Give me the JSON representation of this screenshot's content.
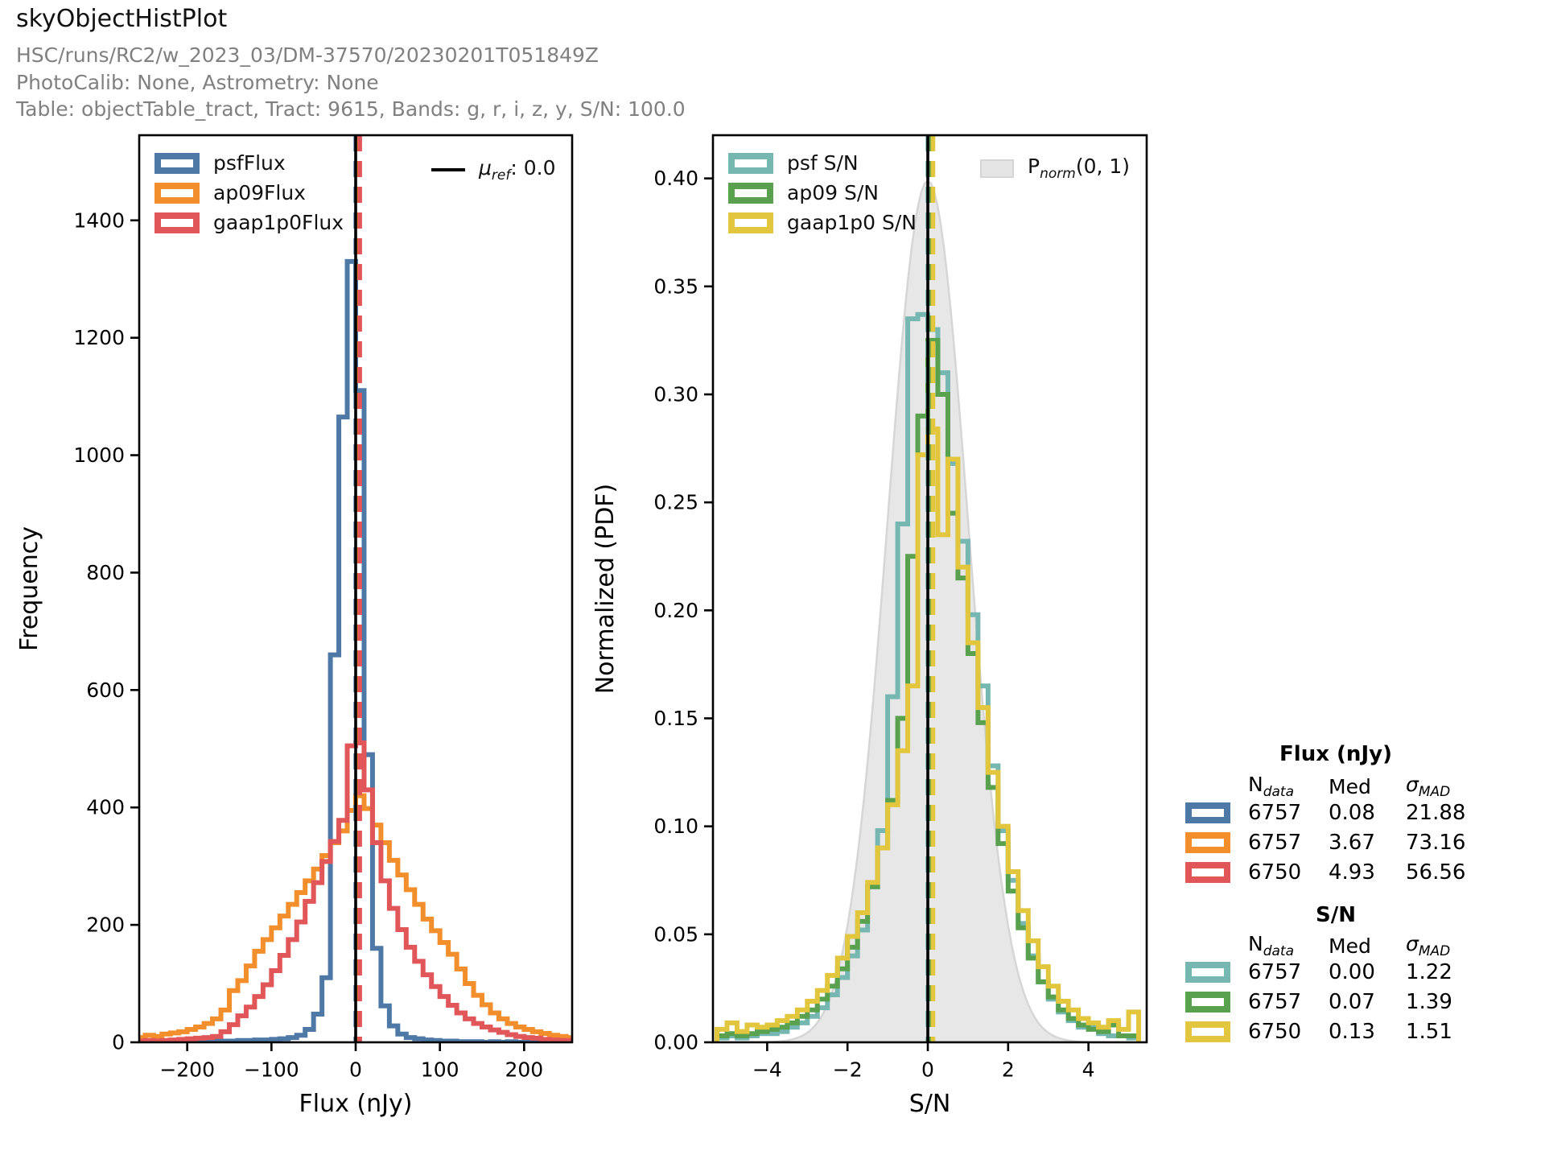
{
  "header": {
    "title": "skyObjectHistPlot",
    "subtitle1": "HSC/runs/RC2/w_2023_03/DM-37570/20230201T051849Z",
    "subtitle2": "PhotoCalib: None, Astrometry: None",
    "subtitle3": "Table: objectTable_tract, Tract: 9615, Bands: g, r, i, z, y, S/N: 100.0"
  },
  "colors": {
    "psf_flux": "#4E79A7",
    "ap09_flux": "#F28E2B",
    "gaap_flux": "#E15759",
    "psf_sn": "#76B7B2",
    "ap09_sn": "#59A14F",
    "gaap_sn": "#E2C63E",
    "norm_fill": "#E7E7E7",
    "norm_edge": "#D6D6D6",
    "ref_line": "#000000",
    "subtitle_text": "#808080"
  },
  "chart_data": [
    {
      "id": "flux-histogram",
      "type": "histogram-step",
      "xlabel": "Flux (nJy)",
      "ylabel": "Frequency",
      "xlim": [
        -257,
        257
      ],
      "ylim": [
        0,
        1545
      ],
      "xticks": {
        "values": [
          -200,
          -100,
          0,
          100,
          200
        ],
        "labels": [
          "−200",
          "−100",
          "0",
          "100",
          "200"
        ]
      },
      "yticks": {
        "values": [
          0,
          200,
          400,
          600,
          800,
          1000,
          1200,
          1400
        ],
        "labels": [
          "0",
          "200",
          "400",
          "600",
          "800",
          "1000",
          "1200",
          "1400"
        ]
      },
      "bin_start": -260,
      "bin_width": 10,
      "ref_line": {
        "value": 0.0,
        "label_base": "μ",
        "label_sub": "ref",
        "label_suffix": ": 0.0"
      },
      "series": [
        {
          "name": "psfFlux",
          "color": "#4E79A7",
          "median": 0.08,
          "values": [
            1,
            0,
            1,
            1,
            0,
            1,
            1,
            2,
            1,
            2,
            2,
            2,
            3,
            3,
            4,
            4,
            5,
            6,
            8,
            12,
            22,
            48,
            110,
            660,
            1065,
            1330,
            1110,
            490,
            160,
            62,
            28,
            14,
            8,
            6,
            4,
            3,
            2,
            2,
            1,
            1,
            1,
            0,
            1,
            0,
            1,
            0,
            0,
            0,
            0,
            0,
            0,
            0
          ]
        },
        {
          "name": "ap09Flux",
          "color": "#F28E2B",
          "median": 3.67,
          "values": [
            8,
            12,
            10,
            14,
            16,
            18,
            22,
            26,
            32,
            40,
            55,
            88,
            105,
            130,
            155,
            175,
            195,
            215,
            235,
            255,
            275,
            295,
            318,
            340,
            360,
            395,
            420,
            398,
            370,
            340,
            310,
            285,
            260,
            235,
            210,
            190,
            170,
            150,
            125,
            100,
            80,
            64,
            50,
            40,
            32,
            26,
            22,
            18,
            15,
            12,
            10,
            8
          ]
        },
        {
          "name": "gaap1p0Flux",
          "color": "#E15759",
          "median": 4.93,
          "values": [
            2,
            3,
            2,
            3,
            4,
            5,
            6,
            7,
            8,
            10,
            18,
            30,
            45,
            60,
            78,
            98,
            122,
            148,
            175,
            205,
            240,
            272,
            308,
            342,
            378,
            505,
            510,
            430,
            340,
            275,
            228,
            192,
            162,
            138,
            115,
            95,
            78,
            63,
            50,
            40,
            32,
            26,
            21,
            17,
            13,
            10,
            8,
            7,
            5,
            4,
            3,
            3
          ]
        }
      ]
    },
    {
      "id": "sn-histogram",
      "type": "histogram-step",
      "xlabel": "S/N",
      "ylabel": "Normalized (PDF)",
      "xlim": [
        -5.35,
        5.45
      ],
      "ylim": [
        0,
        0.42
      ],
      "xticks": {
        "values": [
          -4,
          -2,
          0,
          2,
          4
        ],
        "labels": [
          "−4",
          "−2",
          "0",
          "2",
          "4"
        ]
      },
      "yticks": {
        "values": [
          0,
          0.05,
          0.1,
          0.15,
          0.2,
          0.25,
          0.3,
          0.35,
          0.4
        ],
        "labels": [
          "0.00",
          "0.05",
          "0.10",
          "0.15",
          "0.20",
          "0.25",
          "0.30",
          "0.35",
          "0.40"
        ]
      },
      "bin_start": -5.25,
      "bin_width": 0.25,
      "ref_line": {
        "value": 0.0
      },
      "norm_curve": {
        "label_base": "P",
        "label_sub": "norm",
        "label_suffix": "(0, 1)",
        "mu": 0,
        "sigma": 1,
        "amp": 0.3989
      },
      "series": [
        {
          "name": "psf S/N",
          "color": "#76B7B2",
          "median": 0.0,
          "values": [
            0.002,
            0.003,
            0.002,
            0.003,
            0.004,
            0.004,
            0.005,
            0.007,
            0.009,
            0.012,
            0.016,
            0.022,
            0.03,
            0.04,
            0.052,
            0.072,
            0.098,
            0.16,
            0.24,
            0.335,
            0.337,
            0.33,
            0.31,
            0.268,
            0.232,
            0.198,
            0.165,
            0.128,
            0.098,
            0.075,
            0.055,
            0.04,
            0.028,
            0.02,
            0.014,
            0.01,
            0.007,
            0.008,
            0.004,
            0.003,
            0.003,
            0.002
          ]
        },
        {
          "name": "ap09 S/N",
          "color": "#59A14F",
          "median": 0.07,
          "values": [
            0.003,
            0.004,
            0.003,
            0.004,
            0.005,
            0.006,
            0.007,
            0.009,
            0.012,
            0.015,
            0.02,
            0.026,
            0.034,
            0.044,
            0.056,
            0.072,
            0.09,
            0.112,
            0.15,
            0.225,
            0.29,
            0.325,
            0.3,
            0.245,
            0.215,
            0.18,
            0.148,
            0.118,
            0.092,
            0.07,
            0.053,
            0.039,
            0.028,
            0.021,
            0.015,
            0.011,
            0.008,
            0.006,
            0.005,
            0.008,
            0.003,
            0.003
          ]
        },
        {
          "name": "gaap1p0 S/N",
          "color": "#E2C63E",
          "median": 0.13,
          "values": [
            0.006,
            0.009,
            0.005,
            0.008,
            0.007,
            0.008,
            0.01,
            0.012,
            0.015,
            0.019,
            0.024,
            0.031,
            0.039,
            0.049,
            0.06,
            0.074,
            0.09,
            0.11,
            0.135,
            0.165,
            0.272,
            0.284,
            0.235,
            0.27,
            0.22,
            0.185,
            0.155,
            0.125,
            0.1,
            0.079,
            0.061,
            0.047,
            0.035,
            0.026,
            0.019,
            0.015,
            0.011,
            0.009,
            0.007,
            0.01,
            0.006,
            0.014
          ]
        }
      ]
    }
  ],
  "legends": {
    "flux_hist": [
      {
        "label": "psfFlux",
        "color": "#4E79A7"
      },
      {
        "label": "ap09Flux",
        "color": "#F28E2B"
      },
      {
        "label": "gaap1p0Flux",
        "color": "#E15759"
      }
    ],
    "mu_ref": {
      "base": "μ",
      "sub": "ref",
      "suffix": ": 0.0"
    },
    "sn_hist": [
      {
        "label": "psf S/N",
        "color": "#76B7B2"
      },
      {
        "label": "ap09 S/N",
        "color": "#59A14F"
      },
      {
        "label": "gaap1p0 S/N",
        "color": "#E2C63E"
      }
    ],
    "pnorm": {
      "base": "P",
      "sub": "norm",
      "suffix": "(0, 1)"
    }
  },
  "stats": {
    "flux": {
      "title": "Flux (nJy)",
      "columns": [
        {
          "base": "N",
          "italic": false,
          "sub": "data"
        },
        {
          "base": "Med",
          "italic": false,
          "sub": ""
        },
        {
          "base": "σ",
          "italic": true,
          "sub": "MAD"
        }
      ],
      "rows": [
        {
          "color": "#4E79A7",
          "n": "6757",
          "med": "0.08",
          "mad": "21.88"
        },
        {
          "color": "#F28E2B",
          "n": "6757",
          "med": "3.67",
          "mad": "73.16"
        },
        {
          "color": "#E15759",
          "n": "6750",
          "med": "4.93",
          "mad": "56.56"
        }
      ]
    },
    "sn": {
      "title": "S/N",
      "columns": [
        {
          "base": "N",
          "italic": false,
          "sub": "data"
        },
        {
          "base": "Med",
          "italic": false,
          "sub": ""
        },
        {
          "base": "σ",
          "italic": true,
          "sub": "MAD"
        }
      ],
      "rows": [
        {
          "color": "#76B7B2",
          "n": "6757",
          "med": "0.00",
          "mad": "1.22"
        },
        {
          "color": "#59A14F",
          "n": "6757",
          "med": "0.07",
          "mad": "1.39"
        },
        {
          "color": "#E2C63E",
          "n": "6750",
          "med": "0.13",
          "mad": "1.51"
        }
      ]
    }
  }
}
